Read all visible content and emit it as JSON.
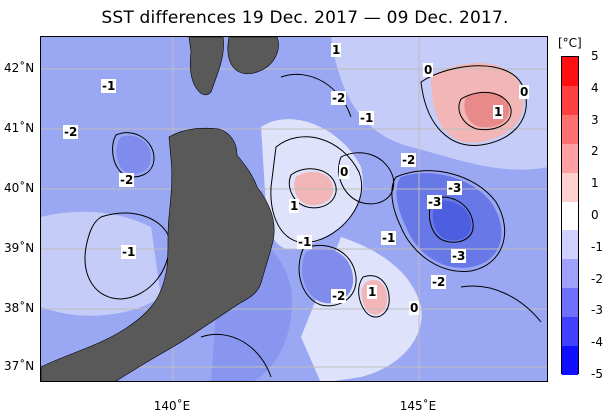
{
  "title": "SST differences 19 Dec. 2017 — 09 Dec. 2017.",
  "colorbar": {
    "unit": "[°C]",
    "labels": [
      "5",
      "4",
      "3",
      "2",
      "1",
      "0",
      "-1",
      "-2",
      "-3",
      "-4",
      "-5"
    ],
    "colors": [
      "#ff1010",
      "#ff4040",
      "#ff7070",
      "#ffa0a0",
      "#ffd0d0",
      "#ffffff",
      "#d0d0ff",
      "#a0a0ff",
      "#7070ff",
      "#4040ff",
      "#1010ff"
    ]
  },
  "axes": {
    "lat_labels": [
      "42˚N",
      "41˚N",
      "40˚N",
      "39˚N",
      "38˚N",
      "37˚N"
    ],
    "lon_labels": [
      "140˚E",
      "145˚E"
    ]
  },
  "contour_labels": [
    {
      "text": "-1"
    },
    {
      "text": "-2"
    },
    {
      "text": "-2"
    },
    {
      "text": "-1"
    },
    {
      "text": "-2"
    },
    {
      "text": "-1"
    },
    {
      "text": "0"
    },
    {
      "text": "1"
    },
    {
      "text": "-1"
    },
    {
      "text": "-1"
    },
    {
      "text": "0"
    },
    {
      "text": "1"
    },
    {
      "text": "-2"
    },
    {
      "text": "-3"
    },
    {
      "text": "-3"
    },
    {
      "text": "-3"
    },
    {
      "text": "-2"
    },
    {
      "text": "-2"
    },
    {
      "text": "1"
    },
    {
      "text": "0"
    },
    {
      "text": "0"
    },
    {
      "text": "1"
    }
  ],
  "colors": {
    "land": "#595959",
    "sea_base": "#9aa7f2",
    "sea_light": "#c5ccf8",
    "sea_dark": "#6878e6",
    "warm": "#f2b6b6",
    "warm_deep": "#e88a8a",
    "grid": "#bdbdbd"
  }
}
